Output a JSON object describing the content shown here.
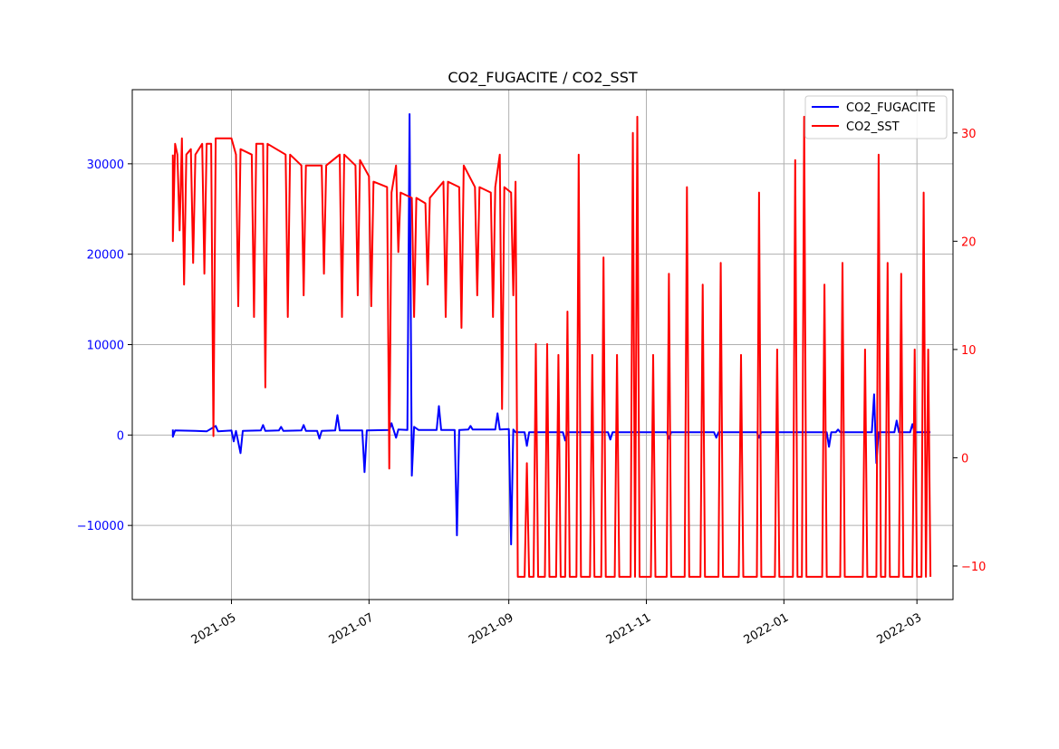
{
  "chart_data": {
    "type": "line",
    "title": "CO2_FUGACITE / CO2_SST",
    "xlabel": "",
    "x_axis": {
      "type": "date",
      "range": [
        "2021-03-18",
        "2022-03-17"
      ],
      "tick_values": [
        "2021-05-01",
        "2021-07-01",
        "2021-09-01",
        "2021-11-01",
        "2022-01-01",
        "2022-03-01"
      ],
      "tick_labels": [
        "2021-05",
        "2021-07",
        "2021-09",
        "2021-11",
        "2022-01",
        "2022-03"
      ]
    },
    "y_left": {
      "ylim": [
        -18200,
        38200
      ],
      "ticks": [
        -10000,
        0,
        10000,
        20000,
        30000
      ],
      "tick_labels": [
        "−10000",
        "0",
        "10000",
        "20000",
        "30000"
      ],
      "color": "#0000ff"
    },
    "y_right": {
      "ylim": [
        -13.1,
        34
      ],
      "ticks": [
        -10,
        0,
        10,
        20,
        30
      ],
      "tick_labels": [
        "−10",
        "0",
        "10",
        "20",
        "30"
      ],
      "color": "#ff0000"
    },
    "grid": true,
    "legend": {
      "placement": "top-right",
      "entries": [
        "CO2_FUGACITE",
        "CO2_SST"
      ]
    },
    "series": [
      {
        "name": "CO2_FUGACITE",
        "axis": "left",
        "color": "#0000ff",
        "points": [
          [
            "2021-04-05",
            600
          ],
          [
            "2021-04-05",
            -200
          ],
          [
            "2021-04-06",
            500
          ],
          [
            "2021-04-15",
            450
          ],
          [
            "2021-04-20",
            400
          ],
          [
            "2021-04-24",
            1000
          ],
          [
            "2021-04-25",
            400
          ],
          [
            "2021-05-01",
            500
          ],
          [
            "2021-05-02",
            -700
          ],
          [
            "2021-05-03",
            450
          ],
          [
            "2021-05-05",
            -2000
          ],
          [
            "2021-05-06",
            450
          ],
          [
            "2021-05-14",
            500
          ],
          [
            "2021-05-15",
            1100
          ],
          [
            "2021-05-16",
            450
          ],
          [
            "2021-05-22",
            500
          ],
          [
            "2021-05-23",
            900
          ],
          [
            "2021-05-24",
            450
          ],
          [
            "2021-06-01",
            500
          ],
          [
            "2021-06-02",
            1100
          ],
          [
            "2021-06-03",
            450
          ],
          [
            "2021-06-08",
            450
          ],
          [
            "2021-06-09",
            -400
          ],
          [
            "2021-06-10",
            450
          ],
          [
            "2021-06-16",
            500
          ],
          [
            "2021-06-17",
            2200
          ],
          [
            "2021-06-18",
            500
          ],
          [
            "2021-06-28",
            500
          ],
          [
            "2021-06-29",
            -4100
          ],
          [
            "2021-06-30",
            500
          ],
          [
            "2021-07-10",
            550
          ],
          [
            "2021-07-11",
            1300
          ],
          [
            "2021-07-12",
            500
          ],
          [
            "2021-07-13",
            -300
          ],
          [
            "2021-07-14",
            600
          ],
          [
            "2021-07-18",
            550
          ],
          [
            "2021-07-19",
            35500
          ],
          [
            "2021-07-20",
            -4500
          ],
          [
            "2021-07-21",
            900
          ],
          [
            "2021-07-23",
            550
          ],
          [
            "2021-07-31",
            550
          ],
          [
            "2021-08-01",
            3200
          ],
          [
            "2021-08-02",
            550
          ],
          [
            "2021-08-08",
            550
          ],
          [
            "2021-08-09",
            -11100
          ],
          [
            "2021-08-10",
            550
          ],
          [
            "2021-08-14",
            600
          ],
          [
            "2021-08-15",
            1000
          ],
          [
            "2021-08-16",
            600
          ],
          [
            "2021-08-26",
            600
          ],
          [
            "2021-08-27",
            2400
          ],
          [
            "2021-08-28",
            600
          ],
          [
            "2021-09-01",
            650
          ],
          [
            "2021-09-02",
            -12100
          ],
          [
            "2021-09-03",
            600
          ],
          [
            "2021-09-04",
            300
          ],
          [
            "2021-09-08",
            300
          ],
          [
            "2021-09-09",
            -1200
          ],
          [
            "2021-09-10",
            300
          ],
          [
            "2021-09-25",
            300
          ],
          [
            "2021-09-26",
            -600
          ],
          [
            "2021-09-27",
            300
          ],
          [
            "2021-10-15",
            300
          ],
          [
            "2021-10-16",
            -500
          ],
          [
            "2021-10-17",
            300
          ],
          [
            "2021-11-01",
            300
          ],
          [
            "2021-11-10",
            300
          ],
          [
            "2021-11-11",
            -400
          ],
          [
            "2021-11-12",
            300
          ],
          [
            "2021-12-01",
            300
          ],
          [
            "2021-12-02",
            -300
          ],
          [
            "2021-12-03",
            300
          ],
          [
            "2021-12-20",
            300
          ],
          [
            "2021-12-21",
            -300
          ],
          [
            "2021-12-22",
            300
          ],
          [
            "2022-01-20",
            300
          ],
          [
            "2022-01-21",
            -1300
          ],
          [
            "2022-01-22",
            300
          ],
          [
            "2022-01-24",
            300
          ],
          [
            "2022-01-25",
            600
          ],
          [
            "2022-01-26",
            300
          ],
          [
            "2022-02-09",
            300
          ],
          [
            "2022-02-10",
            4500
          ],
          [
            "2022-02-11",
            -3100
          ],
          [
            "2022-02-12",
            300
          ],
          [
            "2022-02-19",
            300
          ],
          [
            "2022-02-20",
            1600
          ],
          [
            "2022-02-21",
            300
          ],
          [
            "2022-02-26",
            300
          ],
          [
            "2022-02-27",
            1200
          ],
          [
            "2022-02-28",
            300
          ],
          [
            "2022-03-07",
            300
          ]
        ]
      },
      {
        "name": "CO2_SST",
        "axis": "right",
        "color": "#ff0000",
        "points": [
          [
            "2021-04-05",
            28
          ],
          [
            "2021-04-05",
            20
          ],
          [
            "2021-04-06",
            29
          ],
          [
            "2021-04-07",
            28
          ],
          [
            "2021-04-08",
            21
          ],
          [
            "2021-04-09",
            29.5
          ],
          [
            "2021-04-10",
            16
          ],
          [
            "2021-04-11",
            28
          ],
          [
            "2021-04-13",
            28.5
          ],
          [
            "2021-04-14",
            18
          ],
          [
            "2021-04-15",
            28
          ],
          [
            "2021-04-18",
            29
          ],
          [
            "2021-04-19",
            17
          ],
          [
            "2021-04-20",
            29
          ],
          [
            "2021-04-22",
            29
          ],
          [
            "2021-04-23",
            2
          ],
          [
            "2021-04-24",
            29.5
          ],
          [
            "2021-05-01",
            29.5
          ],
          [
            "2021-05-03",
            28
          ],
          [
            "2021-05-04",
            14
          ],
          [
            "2021-05-05",
            28.5
          ],
          [
            "2021-05-10",
            28
          ],
          [
            "2021-05-11",
            13
          ],
          [
            "2021-05-12",
            29
          ],
          [
            "2021-05-15",
            29
          ],
          [
            "2021-05-16",
            6.5
          ],
          [
            "2021-05-17",
            29
          ],
          [
            "2021-05-25",
            28
          ],
          [
            "2021-05-26",
            13
          ],
          [
            "2021-05-27",
            28
          ],
          [
            "2021-06-01",
            27
          ],
          [
            "2021-06-02",
            15
          ],
          [
            "2021-06-03",
            27
          ],
          [
            "2021-06-10",
            27
          ],
          [
            "2021-06-11",
            17
          ],
          [
            "2021-06-12",
            27
          ],
          [
            "2021-06-18",
            28
          ],
          [
            "2021-06-19",
            13
          ],
          [
            "2021-06-20",
            28
          ],
          [
            "2021-06-25",
            27
          ],
          [
            "2021-06-26",
            15
          ],
          [
            "2021-06-27",
            27.5
          ],
          [
            "2021-07-01",
            26
          ],
          [
            "2021-07-02",
            14
          ],
          [
            "2021-07-03",
            25.5
          ],
          [
            "2021-07-09",
            25
          ],
          [
            "2021-07-10",
            -1
          ],
          [
            "2021-07-11",
            24.5
          ],
          [
            "2021-07-13",
            27
          ],
          [
            "2021-07-14",
            19
          ],
          [
            "2021-07-15",
            24.5
          ],
          [
            "2021-07-20",
            24
          ],
          [
            "2021-07-21",
            13
          ],
          [
            "2021-07-22",
            24
          ],
          [
            "2021-07-26",
            23.5
          ],
          [
            "2021-07-27",
            16
          ],
          [
            "2021-07-28",
            24
          ],
          [
            "2021-08-03",
            25.5
          ],
          [
            "2021-08-04",
            13
          ],
          [
            "2021-08-05",
            25.5
          ],
          [
            "2021-08-10",
            25
          ],
          [
            "2021-08-11",
            12
          ],
          [
            "2021-08-12",
            27
          ],
          [
            "2021-08-17",
            25
          ],
          [
            "2021-08-18",
            15
          ],
          [
            "2021-08-19",
            25
          ],
          [
            "2021-08-24",
            24.5
          ],
          [
            "2021-08-25",
            13
          ],
          [
            "2021-08-26",
            25
          ],
          [
            "2021-08-28",
            28
          ],
          [
            "2021-08-29",
            4.5
          ],
          [
            "2021-08-30",
            25
          ],
          [
            "2021-09-02",
            24.5
          ],
          [
            "2021-09-03",
            15
          ],
          [
            "2021-09-04",
            25.5
          ],
          [
            "2021-09-05",
            -11
          ],
          [
            "2021-09-08",
            -11
          ],
          [
            "2021-09-09",
            -0.5
          ],
          [
            "2021-09-10",
            -11
          ],
          [
            "2021-09-12",
            -11
          ],
          [
            "2021-09-13",
            10.5
          ],
          [
            "2021-09-14",
            -11
          ],
          [
            "2021-09-17",
            -11
          ],
          [
            "2021-09-18",
            10.5
          ],
          [
            "2021-09-19",
            -11
          ],
          [
            "2021-09-22",
            -11
          ],
          [
            "2021-09-23",
            9.5
          ],
          [
            "2021-09-24",
            -11
          ],
          [
            "2021-09-26",
            -11
          ],
          [
            "2021-09-27",
            13.5
          ],
          [
            "2021-09-28",
            -11
          ],
          [
            "2021-10-01",
            -11
          ],
          [
            "2021-10-02",
            28
          ],
          [
            "2021-10-03",
            -11
          ],
          [
            "2021-10-07",
            -11
          ],
          [
            "2021-10-08",
            9.5
          ],
          [
            "2021-10-09",
            -11
          ],
          [
            "2021-10-12",
            -11
          ],
          [
            "2021-10-13",
            18.5
          ],
          [
            "2021-10-14",
            -11
          ],
          [
            "2021-10-18",
            -11
          ],
          [
            "2021-10-19",
            9.5
          ],
          [
            "2021-10-20",
            -11
          ],
          [
            "2021-10-25",
            -11
          ],
          [
            "2021-10-26",
            30
          ],
          [
            "2021-10-27",
            -11
          ],
          [
            "2021-10-28",
            31.5
          ],
          [
            "2021-10-29",
            -11
          ],
          [
            "2021-11-03",
            -11
          ],
          [
            "2021-11-04",
            9.5
          ],
          [
            "2021-11-05",
            -11
          ],
          [
            "2021-11-10",
            -11
          ],
          [
            "2021-11-11",
            17
          ],
          [
            "2021-11-12",
            -11
          ],
          [
            "2021-11-18",
            -11
          ],
          [
            "2021-11-19",
            25
          ],
          [
            "2021-11-20",
            -11
          ],
          [
            "2021-11-25",
            -11
          ],
          [
            "2021-11-26",
            16
          ],
          [
            "2021-11-27",
            -11
          ],
          [
            "2021-12-03",
            -11
          ],
          [
            "2021-12-04",
            18
          ],
          [
            "2021-12-05",
            -11
          ],
          [
            "2021-12-12",
            -11
          ],
          [
            "2021-12-13",
            9.5
          ],
          [
            "2021-12-14",
            -11
          ],
          [
            "2021-12-20",
            -11
          ],
          [
            "2021-12-21",
            24.5
          ],
          [
            "2021-12-22",
            -11
          ],
          [
            "2021-12-28",
            -11
          ],
          [
            "2021-12-29",
            10
          ],
          [
            "2021-12-30",
            -11
          ],
          [
            "2022-01-05",
            -11
          ],
          [
            "2022-01-06",
            27.5
          ],
          [
            "2022-01-07",
            -11
          ],
          [
            "2022-01-09",
            -11
          ],
          [
            "2022-01-10",
            31.5
          ],
          [
            "2022-01-11",
            -11
          ],
          [
            "2022-01-18",
            -11
          ],
          [
            "2022-01-19",
            16
          ],
          [
            "2022-01-20",
            -11
          ],
          [
            "2022-01-26",
            -11
          ],
          [
            "2022-01-27",
            18
          ],
          [
            "2022-01-28",
            -11
          ],
          [
            "2022-02-05",
            -11
          ],
          [
            "2022-02-06",
            10
          ],
          [
            "2022-02-07",
            -11
          ],
          [
            "2022-02-11",
            -11
          ],
          [
            "2022-02-12",
            28
          ],
          [
            "2022-02-13",
            -11
          ],
          [
            "2022-02-15",
            -11
          ],
          [
            "2022-02-16",
            18
          ],
          [
            "2022-02-17",
            -11
          ],
          [
            "2022-02-21",
            -11
          ],
          [
            "2022-02-22",
            17
          ],
          [
            "2022-02-23",
            -11
          ],
          [
            "2022-02-27",
            -11
          ],
          [
            "2022-02-28",
            10
          ],
          [
            "2022-03-01",
            -11
          ],
          [
            "2022-03-03",
            -11
          ],
          [
            "2022-03-04",
            24.5
          ],
          [
            "2022-03-05",
            -11
          ],
          [
            "2022-03-06",
            10
          ],
          [
            "2022-03-07",
            -11
          ]
        ]
      }
    ]
  }
}
